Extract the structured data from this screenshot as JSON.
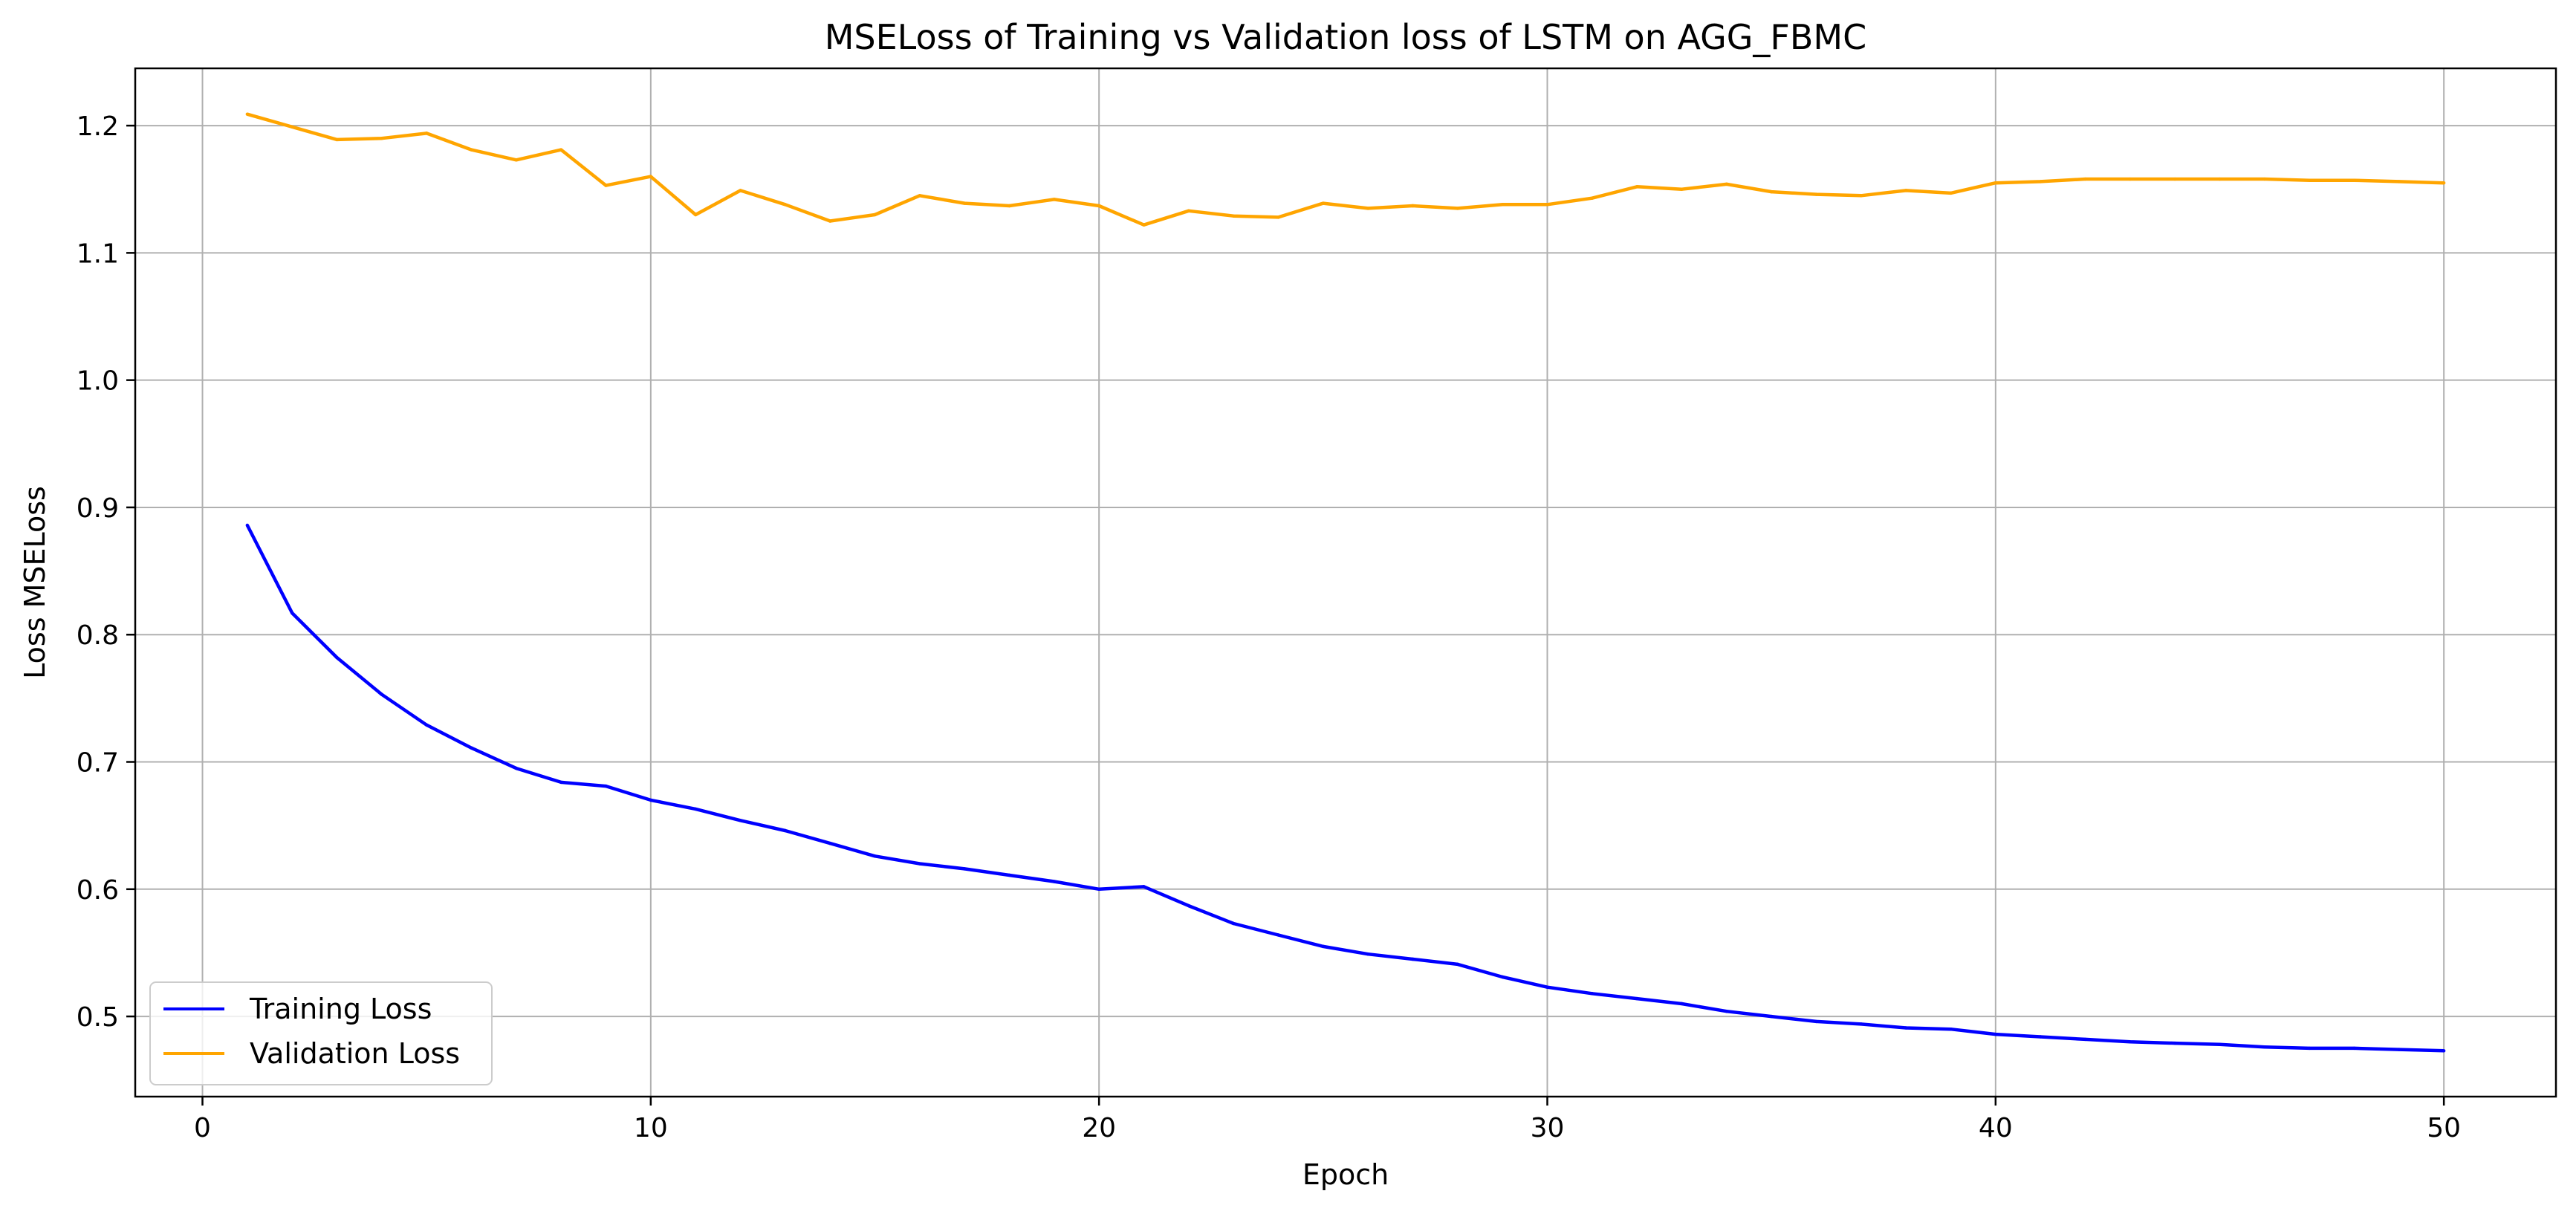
{
  "chart_data": {
    "type": "line",
    "title": "MSELoss of Training vs Validation loss of LSTM on AGG_FBMC",
    "xlabel": "Epoch",
    "ylabel": "Loss MSELoss",
    "xlim": [
      -1.5,
      52.5
    ],
    "ylim": [
      0.437,
      1.245
    ],
    "xticks": [
      0,
      10,
      20,
      30,
      40,
      50
    ],
    "xtick_labels": [
      "0",
      "10",
      "20",
      "30",
      "40",
      "50"
    ],
    "yticks": [
      0.5,
      0.6,
      0.7,
      0.8,
      0.9,
      1.0,
      1.1,
      1.2
    ],
    "ytick_labels": [
      "0.5",
      "0.6",
      "0.7",
      "0.8",
      "0.9",
      "1.0",
      "1.1",
      "1.2"
    ],
    "grid": true,
    "legend_position": "lower-left",
    "x": [
      1,
      2,
      3,
      4,
      5,
      6,
      7,
      8,
      9,
      10,
      11,
      12,
      13,
      14,
      15,
      16,
      17,
      18,
      19,
      20,
      21,
      22,
      23,
      24,
      25,
      26,
      27,
      28,
      29,
      30,
      31,
      32,
      33,
      34,
      35,
      36,
      37,
      38,
      39,
      40,
      41,
      42,
      43,
      44,
      45,
      46,
      47,
      48,
      49,
      50
    ],
    "series": [
      {
        "name": "Training Loss",
        "color": "#0000ff",
        "values": [
          0.886,
          0.817,
          0.782,
          0.753,
          0.729,
          0.711,
          0.695,
          0.684,
          0.681,
          0.67,
          0.663,
          0.654,
          0.646,
          0.636,
          0.626,
          0.62,
          0.616,
          0.611,
          0.606,
          0.6,
          0.602,
          0.587,
          0.573,
          0.564,
          0.555,
          0.549,
          0.545,
          0.541,
          0.531,
          0.523,
          0.518,
          0.514,
          0.51,
          0.504,
          0.5,
          0.496,
          0.494,
          0.491,
          0.49,
          0.486,
          0.484,
          0.482,
          0.48,
          0.479,
          0.478,
          0.476,
          0.475,
          0.475,
          0.474,
          0.473
        ]
      },
      {
        "name": "Validation Loss",
        "color": "#ffa500",
        "values": [
          1.209,
          1.199,
          1.189,
          1.19,
          1.194,
          1.181,
          1.173,
          1.181,
          1.153,
          1.16,
          1.13,
          1.149,
          1.138,
          1.125,
          1.13,
          1.145,
          1.139,
          1.137,
          1.142,
          1.137,
          1.122,
          1.133,
          1.129,
          1.128,
          1.139,
          1.135,
          1.137,
          1.135,
          1.138,
          1.138,
          1.143,
          1.152,
          1.15,
          1.154,
          1.148,
          1.146,
          1.145,
          1.149,
          1.147,
          1.155,
          1.156,
          1.158,
          1.158,
          1.158,
          1.158,
          1.158,
          1.157,
          1.157,
          1.156,
          1.155
        ]
      }
    ]
  },
  "colors": {
    "background": "#ffffff",
    "grid": "#b0b0b0",
    "axis": "#000000"
  }
}
